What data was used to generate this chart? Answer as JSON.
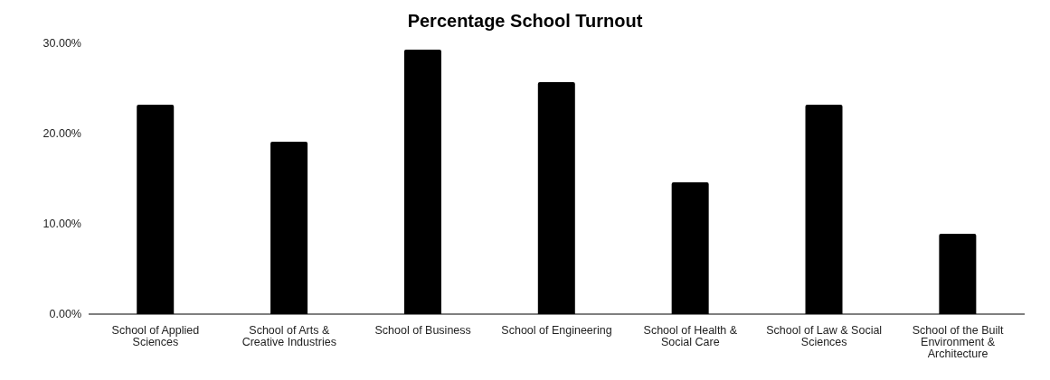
{
  "chart_data": {
    "type": "bar",
    "title": "Percentage School Turnout",
    "categories": [
      "School of Applied Sciences",
      "School of Arts & Creative Industries",
      "School of Business",
      "School of Engineering",
      "School of Health & Social Care",
      "School of Law & Social Sciences",
      "School of the Built Environment & Architecture"
    ],
    "values": [
      23.2,
      19.1,
      29.3,
      25.7,
      14.6,
      23.2,
      8.9
    ],
    "color": "#000000",
    "ylim": [
      0,
      30
    ],
    "yticks": [
      {
        "value": 0,
        "label": "0.00%"
      },
      {
        "value": 10,
        "label": "10.00%"
      },
      {
        "value": 20,
        "label": "20.00%"
      },
      {
        "value": 30,
        "label": "30.00%"
      }
    ],
    "grid": false,
    "legend": false
  }
}
